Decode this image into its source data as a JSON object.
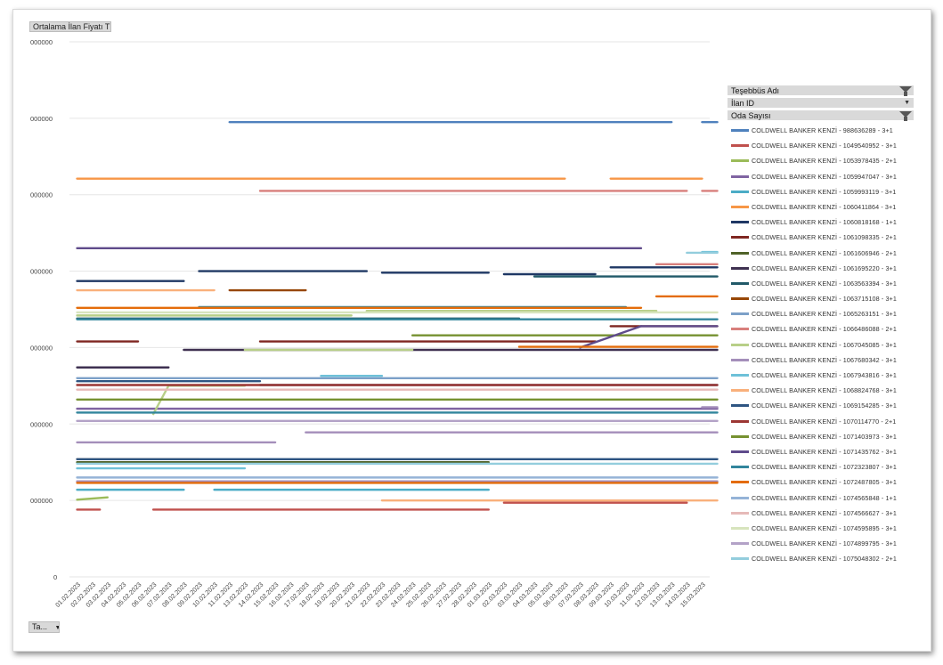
{
  "pivot": {
    "value_field_label": "Ortalama İlan Fiyatı TL",
    "axis_field_label": "Ta...",
    "filter_fields": [
      {
        "label": "Teşebbüs Adı",
        "indicator": "filtered"
      },
      {
        "label": "İlan ID",
        "indicator": "dropdown"
      },
      {
        "label": "Oda Sayısı",
        "indicator": "filtered"
      }
    ]
  },
  "icons": {
    "dropdown": "dropdown-arrow-icon",
    "filter": "filter-funnel-icon"
  },
  "chart_data": {
    "type": "line",
    "title": "",
    "xlabel": "",
    "ylabel": "",
    "y_tick_labels": [
      "0",
      "000000",
      "000000",
      "000000",
      "000000",
      "000000",
      "000000",
      "000000"
    ],
    "ylim": [
      0,
      7
    ],
    "grid": true,
    "legend_position": "right",
    "x": [
      "01.02.2023",
      "02.02.2023",
      "03.02.2023",
      "04.02.2023",
      "05.02.2023",
      "06.02.2023",
      "07.02.2023",
      "08.02.2023",
      "09.02.2023",
      "10.02.2023",
      "11.02.2023",
      "13.02.2023",
      "14.02.2023",
      "15.02.2023",
      "16.02.2023",
      "17.02.2023",
      "18.02.2023",
      "19.02.2023",
      "20.02.2023",
      "21.02.2023",
      "22.02.2023",
      "23.02.2023",
      "24.02.2023",
      "25.02.2023",
      "26.02.2023",
      "27.02.2023",
      "28.02.2023",
      "01.03.2023",
      "02.03.2023",
      "03.03.2023",
      "04.03.2023",
      "05.03.2023",
      "06.03.2023",
      "07.03.2023",
      "08.03.2023",
      "09.03.2023",
      "10.03.2023",
      "11.03.2023",
      "12.03.2023",
      "13.03.2023",
      "14.03.2023",
      "15.03.2023"
    ],
    "series": [
      {
        "name": "COLDWELL BANKER KENZİ - 988636289 - 3+1",
        "color": "#4f81bd",
        "segments": [
          [
            10,
            5.95,
            39,
            5.95
          ],
          [
            41,
            5.95,
            42,
            5.95
          ]
        ]
      },
      {
        "name": "COLDWELL BANKER KENZİ - 1049540952 - 3+1",
        "color": "#c0504d",
        "segments": [
          [
            0,
            0.88,
            1.5,
            0.88
          ],
          [
            5,
            0.88,
            27,
            0.88
          ],
          [
            28,
            0.97,
            40,
            0.97
          ]
        ]
      },
      {
        "name": "COLDWELL BANKER KENZİ - 1053978435 - 2+1",
        "color": "#9bbb59",
        "segments": [
          [
            0,
            1.01,
            2,
            1.04
          ]
        ]
      },
      {
        "name": "COLDWELL BANKER KENZİ - 1059947047 - 3+1",
        "color": "#8064a2",
        "segments": [
          [
            0,
            2.2,
            42,
            2.2
          ]
        ]
      },
      {
        "name": "COLDWELL BANKER KENZİ - 1059993119 - 3+1",
        "color": "#4bacc6",
        "segments": [
          [
            0,
            1.14,
            7,
            1.14
          ],
          [
            9,
            1.14,
            27,
            1.14
          ]
        ]
      },
      {
        "name": "COLDWELL BANKER KENZİ - 1060411864 - 3+1",
        "color": "#f79646",
        "segments": [
          [
            0,
            5.21,
            32,
            5.21
          ],
          [
            35,
            5.21,
            41,
            5.21
          ]
        ]
      },
      {
        "name": "COLDWELL BANKER KENZİ - 1060818168 - 1+1",
        "color": "#1f3864",
        "segments": [
          [
            0,
            3.87,
            7,
            3.87
          ],
          [
            8,
            4.0,
            19,
            4.0
          ],
          [
            20,
            3.98,
            27,
            3.98
          ],
          [
            28,
            3.96,
            34,
            3.96
          ],
          [
            35,
            4.05,
            42,
            4.05
          ]
        ]
      },
      {
        "name": "COLDWELL BANKER KENZİ - 1061098335 - 2+1",
        "color": "#7f2621",
        "segments": [
          [
            0,
            3.08,
            4,
            3.08
          ],
          [
            12,
            3.08,
            34,
            3.08
          ],
          [
            35,
            3.28,
            42,
            3.28
          ]
        ]
      },
      {
        "name": "COLDWELL BANKER KENZİ - 1061606946 - 2+1",
        "color": "#4f6228",
        "segments": [
          [
            0,
            1.5,
            27,
            1.5
          ]
        ]
      },
      {
        "name": "COLDWELL BANKER KENZİ - 1061695220 - 3+1",
        "color": "#3f3151",
        "segments": [
          [
            0,
            2.74,
            6,
            2.74
          ],
          [
            7,
            2.97,
            42,
            2.97
          ]
        ]
      },
      {
        "name": "COLDWELL BANKER KENZİ - 1063563394 - 3+1",
        "color": "#215968",
        "segments": [
          [
            0,
            3.38,
            29,
            3.38
          ],
          [
            30,
            3.93,
            42,
            3.93
          ]
        ]
      },
      {
        "name": "COLDWELL BANKER KENZİ - 1063715108 - 3+1",
        "color": "#974706",
        "segments": [
          [
            10,
            3.75,
            15,
            3.75
          ]
        ]
      },
      {
        "name": "COLDWELL BANKER KENZİ - 1065263151 - 3+1",
        "color": "#7ca0c8",
        "segments": [
          [
            0,
            2.6,
            42,
            2.6
          ]
        ]
      },
      {
        "name": "COLDWELL BANKER KENZİ - 1066486088 - 2+1",
        "color": "#d87f7c",
        "segments": [
          [
            12,
            5.05,
            40,
            5.05
          ],
          [
            41,
            5.05,
            42,
            5.05
          ],
          [
            38,
            4.09,
            42,
            4.09
          ]
        ]
      },
      {
        "name": "COLDWELL BANKER KENZİ - 1067045085 - 3+1",
        "color": "#b8cf88",
        "segments": [
          [
            0,
            3.42,
            18,
            3.42
          ],
          [
            19,
            3.48,
            38,
            3.48
          ],
          [
            5,
            2.13,
            6,
            2.5
          ],
          [
            6,
            2.5,
            11,
            2.5
          ],
          [
            11,
            2.97,
            22,
            2.97
          ]
        ]
      },
      {
        "name": "COLDWELL BANKER KENZİ - 1067680342 - 3+1",
        "color": "#a48eba",
        "segments": [
          [
            0,
            1.25,
            42,
            1.25
          ],
          [
            15,
            1.89,
            42,
            1.89
          ],
          [
            0,
            1.76,
            13,
            1.76
          ],
          [
            41,
            2.22,
            42,
            2.22
          ]
        ]
      },
      {
        "name": "COLDWELL BANKER KENZİ - 1067943816 - 3+1",
        "color": "#6ec1d8",
        "segments": [
          [
            16,
            2.63,
            20,
            2.63
          ],
          [
            41,
            4.25,
            42,
            4.25
          ],
          [
            0,
            1.42,
            11,
            1.42
          ]
        ]
      },
      {
        "name": "COLDWELL BANKER KENZİ - 1068824768 - 3+1",
        "color": "#f9b07b",
        "segments": [
          [
            0,
            3.75,
            9,
            3.75
          ],
          [
            0,
            1.54,
            8,
            1.54
          ],
          [
            20,
            1.0,
            42,
            1.0
          ]
        ]
      },
      {
        "name": "COLDWELL BANKER KENZİ - 1069154285 - 3+1",
        "color": "#2e5582",
        "segments": [
          [
            0,
            2.56,
            12,
            2.56
          ],
          [
            12,
            2.51,
            42,
            2.51
          ],
          [
            0,
            1.54,
            42,
            1.54
          ]
        ]
      },
      {
        "name": "COLDWELL BANKER KENZİ - 1070114770 - 2+1",
        "color": "#9c3633",
        "segments": [
          [
            0,
            2.51,
            42,
            2.51
          ]
        ]
      },
      {
        "name": "COLDWELL BANKER KENZİ - 1071403973 - 3+1",
        "color": "#769130",
        "segments": [
          [
            22,
            3.16,
            42,
            3.16
          ],
          [
            0,
            2.32,
            42,
            2.32
          ]
        ]
      },
      {
        "name": "COLDWELL BANKER KENZİ - 1071435762 - 3+1",
        "color": "#5f4b8b",
        "segments": [
          [
            0,
            4.3,
            37,
            4.3
          ],
          [
            37,
            3.28,
            42,
            3.28
          ],
          [
            33,
            3.0,
            37,
            3.28
          ]
        ]
      },
      {
        "name": "COLDWELL BANKER KENZİ - 1072323807 - 3+1",
        "color": "#31859c",
        "segments": [
          [
            0,
            2.15,
            42,
            2.15
          ],
          [
            0,
            3.37,
            42,
            3.37
          ],
          [
            8,
            3.53,
            36,
            3.53
          ]
        ]
      },
      {
        "name": "COLDWELL BANKER KENZİ - 1072487805 - 3+1",
        "color": "#e46c0a",
        "segments": [
          [
            0,
            3.52,
            37,
            3.52
          ],
          [
            38,
            3.67,
            42,
            3.67
          ],
          [
            29,
            3.01,
            42,
            3.01
          ],
          [
            0,
            1.23,
            42,
            1.23
          ]
        ]
      },
      {
        "name": "COLDWELL BANKER KENZİ - 1074565848 - 1+1",
        "color": "#95b3d7",
        "segments": [
          [
            0,
            1.3,
            42,
            1.3
          ]
        ]
      },
      {
        "name": "COLDWELL BANKER KENZİ - 1074566627 - 3+1",
        "color": "#e6b9b8",
        "segments": [
          [
            0,
            2.45,
            42,
            2.45
          ]
        ]
      },
      {
        "name": "COLDWELL BANKER KENZİ - 1074595895 - 3+1",
        "color": "#d7e4bd",
        "segments": [
          [
            0,
            3.46,
            42,
            3.46
          ]
        ]
      },
      {
        "name": "COLDWELL BANKER KENZİ - 1074899795 - 3+1",
        "color": "#b3a2c7",
        "segments": [
          [
            0,
            2.04,
            42,
            2.04
          ]
        ]
      },
      {
        "name": "COLDWELL BANKER KENZİ - 1075048302 - 2+1",
        "color": "#93cddd",
        "segments": [
          [
            0,
            1.48,
            42,
            1.48
          ],
          [
            40,
            4.24,
            42,
            4.24
          ]
        ]
      }
    ]
  }
}
